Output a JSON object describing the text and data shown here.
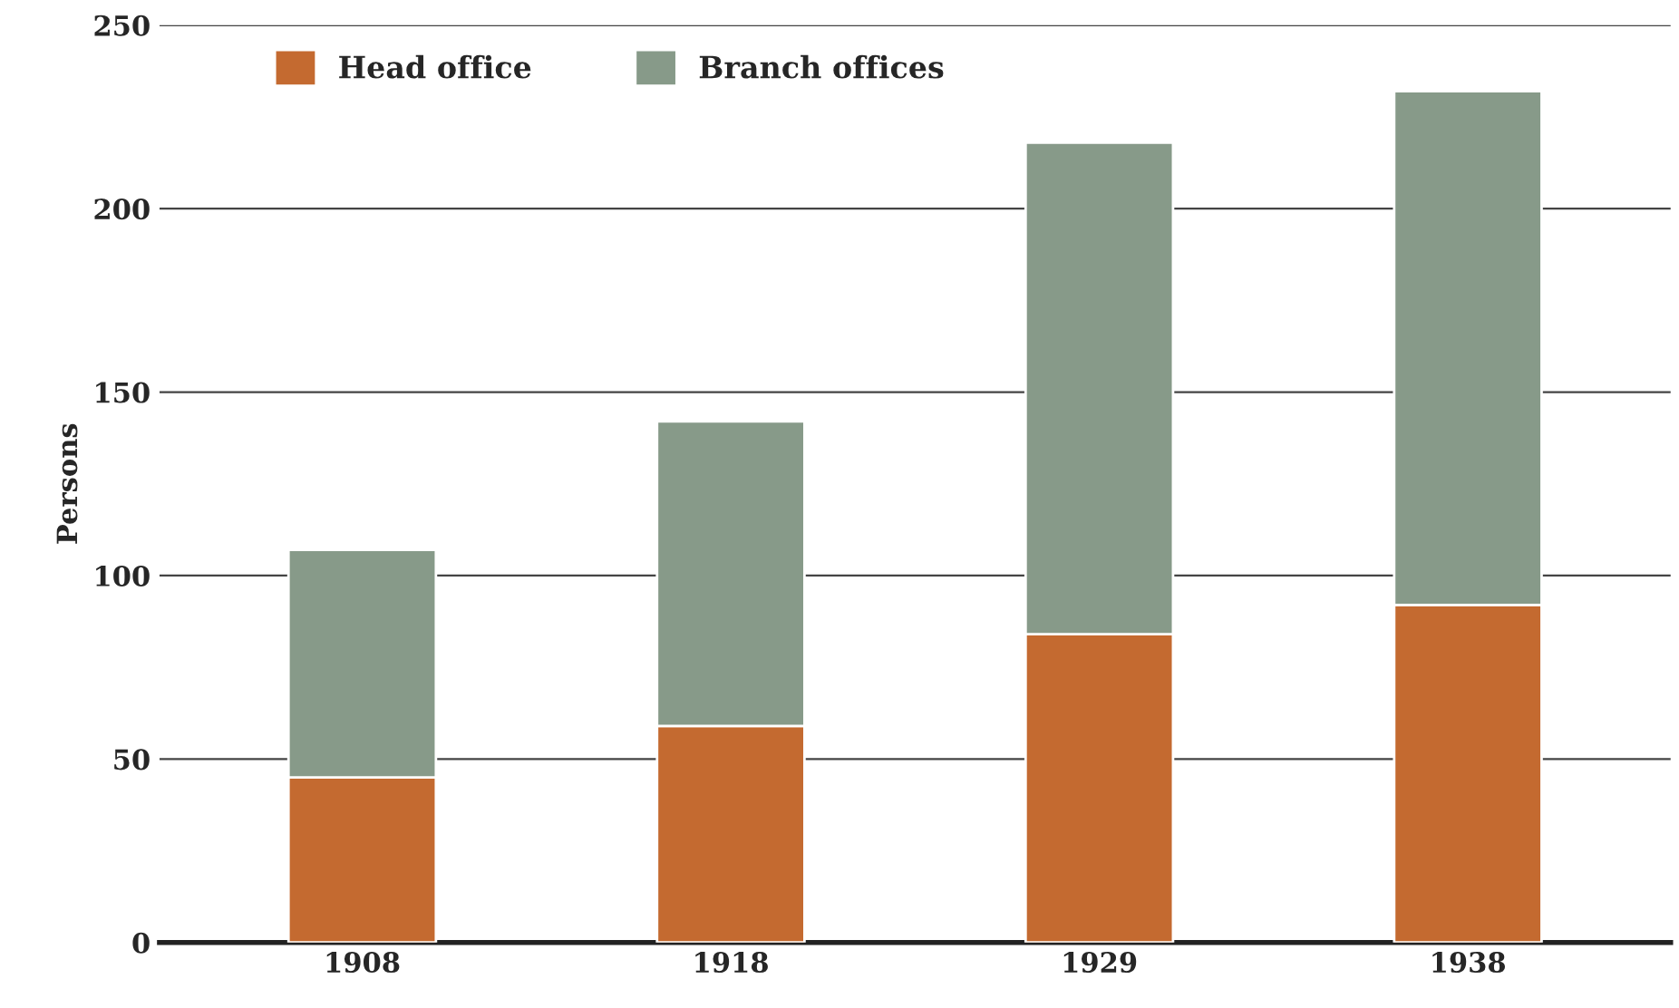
{
  "chart_data": {
    "type": "bar",
    "stacked": true,
    "ylabel": "Persons",
    "categories": [
      "1908",
      "1918",
      "1929",
      "1938"
    ],
    "series": [
      {
        "name": "Head office",
        "color": "#c46a30",
        "values": [
          45,
          59,
          84,
          92
        ]
      },
      {
        "name": "Branch offices",
        "color": "#879a89",
        "values": [
          62,
          83,
          134,
          140
        ]
      }
    ],
    "ylim": [
      0,
      250
    ],
    "yticks": [
      0,
      50,
      100,
      150,
      200,
      250
    ],
    "grid": "y",
    "legend": "top left"
  }
}
